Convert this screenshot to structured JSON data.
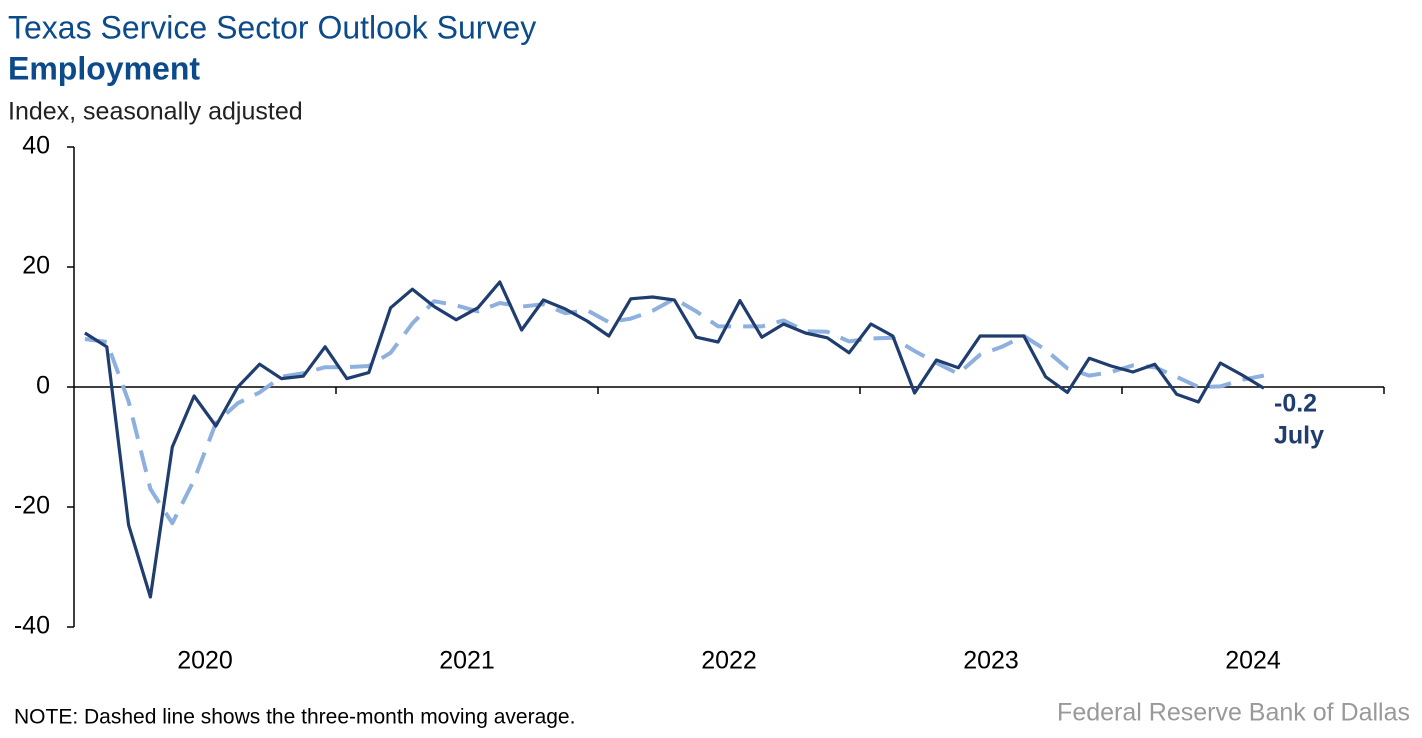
{
  "chart_data": {
    "type": "line",
    "title": "Texas Service Sector Outlook Survey",
    "subtitle": "Employment",
    "y_label": "Index, seasonally adjusted",
    "x_labels": [
      "2020",
      "2021",
      "2022",
      "2023",
      "2024"
    ],
    "ylim": [
      -40,
      40
    ],
    "yticks": [
      -40,
      -20,
      0,
      20,
      40
    ],
    "series": [
      {
        "name": "Employment index",
        "color": "#1f3d6e",
        "dash": false,
        "values": [
          9,
          6.7,
          -23,
          -35,
          -10,
          -1.5,
          -6.5,
          0,
          3.8,
          1.4,
          1.8,
          6.7,
          1.4,
          2.4,
          13.2,
          16.3,
          13.4,
          11.2,
          13.2,
          17.5,
          9.5,
          14.5,
          13,
          11,
          8.5,
          14.7,
          15,
          14.5,
          8.3,
          7.5,
          14.4,
          8.3,
          10.5,
          9,
          8.2,
          5.7,
          10.5,
          8.5,
          -1,
          4.5,
          3.2,
          8.5,
          8.5,
          8.5,
          1.7,
          -0.9,
          4.8,
          3.5,
          2.5,
          3.8,
          -1.2,
          -2.5,
          4,
          2,
          -0.2
        ]
      },
      {
        "name": "Three-month moving average",
        "color": "#8eb0de",
        "dash": true,
        "values": [
          8,
          7.5,
          -2.4,
          -17,
          -22.7,
          -15.5,
          -6,
          -2.7,
          -0.9,
          1.7,
          2.3,
          3.3,
          3.3,
          3.5,
          5.7,
          10.6,
          14.3,
          13.6,
          12.6,
          14,
          13.4,
          13.8,
          12.3,
          12.8,
          10.8,
          11.4,
          12.7,
          14.7,
          12.6,
          10.1,
          10.1,
          10.1,
          11.1,
          9.3,
          9.2,
          7.6,
          8.1,
          8.2,
          6,
          4,
          2.2,
          5.4,
          6.7,
          8.5,
          6.2,
          3.1,
          1.9,
          2.5,
          3.6,
          3.3,
          1.7,
          0,
          0.1,
          1.2,
          1.9
        ]
      }
    ],
    "annotation": {
      "value": "-0.2",
      "month": "July"
    },
    "note": "NOTE: Dashed line shows the three-month moving average.",
    "source": "Federal Reserve Bank of Dallas"
  }
}
